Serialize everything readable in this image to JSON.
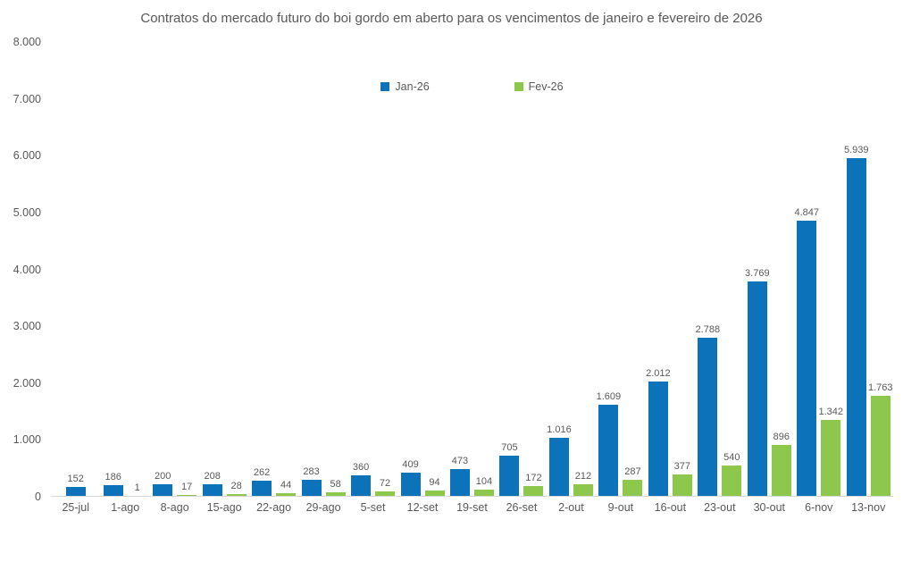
{
  "title": "Contratos do mercado futuro do boi gordo em aberto para os vencimentos de janeiro e fevereiro de 2026",
  "colors": {
    "jan_series": "#0C72B9",
    "fev_series": "#8DC74B",
    "title_text": "#595959",
    "axis_text": "#595959",
    "data_label_text": "#595959",
    "axis_line": "#D9D9D9",
    "background": "#FFFFFF"
  },
  "legend": {
    "items": [
      {
        "label": "Jan-26",
        "color": "#0C72B9"
      },
      {
        "label": "Fev-26",
        "color": "#8DC74B"
      }
    ]
  },
  "y_axis": {
    "ticks": [
      {
        "label": "8.000",
        "value": 8000
      },
      {
        "label": "7.000",
        "value": 7000
      },
      {
        "label": "6.000",
        "value": 6000
      },
      {
        "label": "5.000",
        "value": 5000
      },
      {
        "label": "4.000",
        "value": 4000
      },
      {
        "label": "3.000",
        "value": 3000
      },
      {
        "label": "2.000",
        "value": 2000
      },
      {
        "label": "1.000",
        "value": 1000
      },
      {
        "label": "0",
        "value": 0
      }
    ]
  },
  "chart_data": {
    "type": "bar",
    "title": "Contratos do mercado futuro do boi gordo em aberto para os vencimentos de janeiro e fevereiro de 2026",
    "categories": [
      "25-jul",
      "1-ago",
      "8-ago",
      "15-ago",
      "22-ago",
      "29-ago",
      "5-set",
      "12-set",
      "19-set",
      "26-set",
      "2-out",
      "9-out",
      "16-out",
      "23-out",
      "30-out",
      "6-nov",
      "13-nov"
    ],
    "series": [
      {
        "name": "Jan-26",
        "color": "#0C72B9",
        "values": [
          152,
          186,
          200,
          208,
          262,
          283,
          360,
          409,
          473,
          705,
          1016,
          1609,
          2012,
          2788,
          3769,
          4847,
          5939
        ],
        "labels": [
          "152",
          "186",
          "200",
          "208",
          "262",
          "283",
          "360",
          "409",
          "473",
          "705",
          "1.016",
          "1.609",
          "2.012",
          "2.788",
          "3.769",
          "4.847",
          "5.939"
        ]
      },
      {
        "name": "Fev-26",
        "color": "#8DC74B",
        "values": [
          null,
          1,
          17,
          28,
          44,
          58,
          72,
          94,
          104,
          172,
          212,
          287,
          377,
          540,
          896,
          1342,
          1763
        ],
        "labels": [
          "",
          "1",
          "17",
          "28",
          "44",
          "58",
          "72",
          "94",
          "104",
          "172",
          "212",
          "287",
          "377",
          "540",
          "896",
          "1.342",
          "1.763"
        ]
      }
    ],
    "xlabel": "",
    "ylabel": "",
    "ylim": [
      0,
      8000
    ],
    "grid": false,
    "legend_position": "top-center"
  }
}
